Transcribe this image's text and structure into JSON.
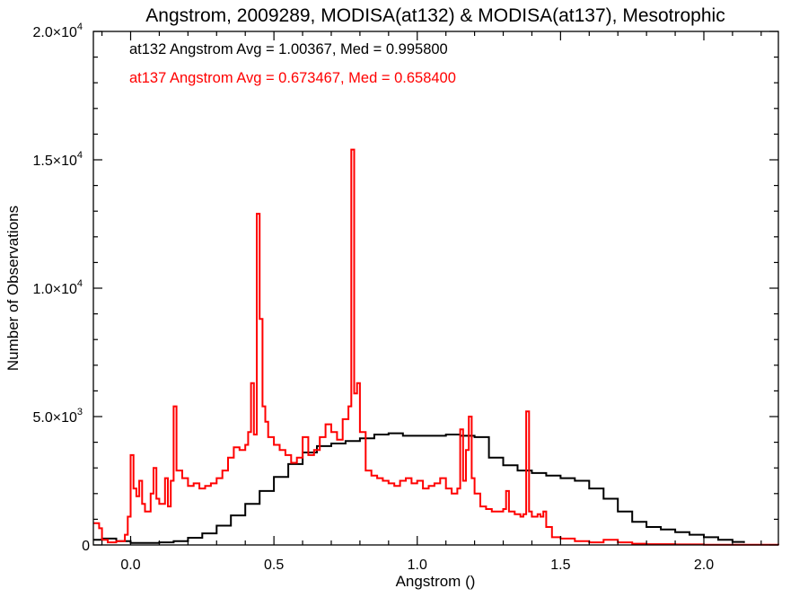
{
  "chart_data": {
    "type": "line",
    "title": "Angstrom, 2009289, MODISA(at132) & MODISA(at137), Mesotrophic",
    "xlabel": "Angstrom ()",
    "ylabel": "Number of Observations",
    "xlim": [
      -0.13,
      2.26
    ],
    "ylim": [
      0,
      20000
    ],
    "x_ticks": [
      0.0,
      0.5,
      1.0,
      1.5,
      2.0
    ],
    "x_tick_labels": [
      "0.0",
      "0.5",
      "1.0",
      "1.5",
      "2.0"
    ],
    "y_ticks": [
      0,
      5000,
      10000,
      15000,
      20000
    ],
    "y_tick_labels": [
      {
        "mant": "0",
        "exp": ""
      },
      {
        "mant": "5.0×10",
        "exp": "3"
      },
      {
        "mant": "1.0×10",
        "exp": "4"
      },
      {
        "mant": "1.5×10",
        "exp": "4"
      },
      {
        "mant": "2.0×10",
        "exp": "4"
      }
    ],
    "grid": false,
    "annotations": [
      {
        "text": "at132 Angstrom Avg = 1.00367, Med = 0.995800",
        "color": "#000000"
      },
      {
        "text": "at137 Angstrom Avg = 0.673467, Med = 0.658400",
        "color": "#ff0000"
      }
    ],
    "series": [
      {
        "color": "#000000",
        "points": [
          [
            -0.13,
            200
          ],
          [
            -0.1,
            250
          ],
          [
            -0.05,
            150
          ],
          [
            0.0,
            80
          ],
          [
            0.05,
            80
          ],
          [
            0.1,
            100
          ],
          [
            0.15,
            150
          ],
          [
            0.2,
            280
          ],
          [
            0.25,
            450
          ],
          [
            0.3,
            750
          ],
          [
            0.35,
            1150
          ],
          [
            0.4,
            1600
          ],
          [
            0.45,
            2100
          ],
          [
            0.5,
            2650
          ],
          [
            0.55,
            3150
          ],
          [
            0.6,
            3600
          ],
          [
            0.65,
            3850
          ],
          [
            0.7,
            3950
          ],
          [
            0.75,
            4050
          ],
          [
            0.8,
            4150
          ],
          [
            0.85,
            4300
          ],
          [
            0.9,
            4350
          ],
          [
            0.95,
            4250
          ],
          [
            1.0,
            4250
          ],
          [
            1.05,
            4250
          ],
          [
            1.1,
            4300
          ],
          [
            1.15,
            4250
          ],
          [
            1.2,
            4200
          ],
          [
            1.25,
            3400
          ],
          [
            1.3,
            3100
          ],
          [
            1.35,
            2900
          ],
          [
            1.4,
            2800
          ],
          [
            1.45,
            2700
          ],
          [
            1.5,
            2600
          ],
          [
            1.55,
            2500
          ],
          [
            1.6,
            2200
          ],
          [
            1.65,
            1800
          ],
          [
            1.7,
            1300
          ],
          [
            1.75,
            900
          ],
          [
            1.8,
            700
          ],
          [
            1.85,
            600
          ],
          [
            1.9,
            500
          ],
          [
            1.95,
            400
          ],
          [
            2.0,
            300
          ],
          [
            2.05,
            200
          ],
          [
            2.1,
            120
          ],
          [
            2.14,
            80
          ]
        ]
      },
      {
        "color": "#ff0000",
        "points": [
          [
            -0.13,
            850
          ],
          [
            -0.11,
            650
          ],
          [
            -0.1,
            200
          ],
          [
            -0.08,
            100
          ],
          [
            -0.05,
            150
          ],
          [
            -0.02,
            400
          ],
          [
            -0.01,
            1100
          ],
          [
            0.0,
            3500
          ],
          [
            0.01,
            2200
          ],
          [
            0.02,
            1900
          ],
          [
            0.03,
            2500
          ],
          [
            0.04,
            1600
          ],
          [
            0.05,
            1300
          ],
          [
            0.07,
            2000
          ],
          [
            0.08,
            3000
          ],
          [
            0.09,
            1800
          ],
          [
            0.1,
            1600
          ],
          [
            0.12,
            2600
          ],
          [
            0.13,
            1500
          ],
          [
            0.14,
            2500
          ],
          [
            0.15,
            5400
          ],
          [
            0.16,
            2900
          ],
          [
            0.18,
            2600
          ],
          [
            0.2,
            2300
          ],
          [
            0.22,
            2400
          ],
          [
            0.24,
            2200
          ],
          [
            0.26,
            2300
          ],
          [
            0.28,
            2400
          ],
          [
            0.3,
            2600
          ],
          [
            0.32,
            2900
          ],
          [
            0.34,
            3400
          ],
          [
            0.36,
            3800
          ],
          [
            0.38,
            3700
          ],
          [
            0.4,
            3900
          ],
          [
            0.41,
            4400
          ],
          [
            0.42,
            6300
          ],
          [
            0.43,
            4300
          ],
          [
            0.44,
            12900
          ],
          [
            0.45,
            8800
          ],
          [
            0.46,
            5400
          ],
          [
            0.47,
            4800
          ],
          [
            0.48,
            4200
          ],
          [
            0.5,
            3900
          ],
          [
            0.52,
            3700
          ],
          [
            0.54,
            3500
          ],
          [
            0.56,
            3200
          ],
          [
            0.58,
            3400
          ],
          [
            0.6,
            4200
          ],
          [
            0.62,
            3500
          ],
          [
            0.64,
            3700
          ],
          [
            0.66,
            4200
          ],
          [
            0.68,
            4700
          ],
          [
            0.7,
            4400
          ],
          [
            0.72,
            4100
          ],
          [
            0.74,
            4900
          ],
          [
            0.76,
            5400
          ],
          [
            0.77,
            15400
          ],
          [
            0.78,
            5900
          ],
          [
            0.79,
            6300
          ],
          [
            0.8,
            4400
          ],
          [
            0.82,
            2900
          ],
          [
            0.84,
            2700
          ],
          [
            0.86,
            2600
          ],
          [
            0.88,
            2500
          ],
          [
            0.9,
            2400
          ],
          [
            0.92,
            2300
          ],
          [
            0.94,
            2500
          ],
          [
            0.96,
            2600
          ],
          [
            0.98,
            2400
          ],
          [
            1.0,
            2500
          ],
          [
            1.02,
            2200
          ],
          [
            1.04,
            2300
          ],
          [
            1.06,
            2400
          ],
          [
            1.08,
            2600
          ],
          [
            1.1,
            2200
          ],
          [
            1.12,
            2000
          ],
          [
            1.14,
            2200
          ],
          [
            1.15,
            4500
          ],
          [
            1.16,
            2500
          ],
          [
            1.17,
            3700
          ],
          [
            1.18,
            5000
          ],
          [
            1.19,
            2600
          ],
          [
            1.2,
            2000
          ],
          [
            1.22,
            1500
          ],
          [
            1.24,
            1400
          ],
          [
            1.26,
            1300
          ],
          [
            1.28,
            1300
          ],
          [
            1.3,
            1400
          ],
          [
            1.31,
            2100
          ],
          [
            1.32,
            1300
          ],
          [
            1.34,
            1200
          ],
          [
            1.36,
            1100
          ],
          [
            1.37,
            1200
          ],
          [
            1.38,
            5200
          ],
          [
            1.39,
            1300
          ],
          [
            1.4,
            1100
          ],
          [
            1.42,
            1200
          ],
          [
            1.43,
            1100
          ],
          [
            1.44,
            1300
          ],
          [
            1.45,
            700
          ],
          [
            1.47,
            300
          ],
          [
            1.5,
            250
          ],
          [
            1.55,
            150
          ],
          [
            1.6,
            100
          ],
          [
            1.65,
            200
          ],
          [
            1.7,
            100
          ],
          [
            1.75,
            50
          ],
          [
            1.8,
            30
          ],
          [
            1.9,
            20
          ],
          [
            2.0,
            10
          ],
          [
            2.26,
            0
          ]
        ]
      }
    ]
  }
}
